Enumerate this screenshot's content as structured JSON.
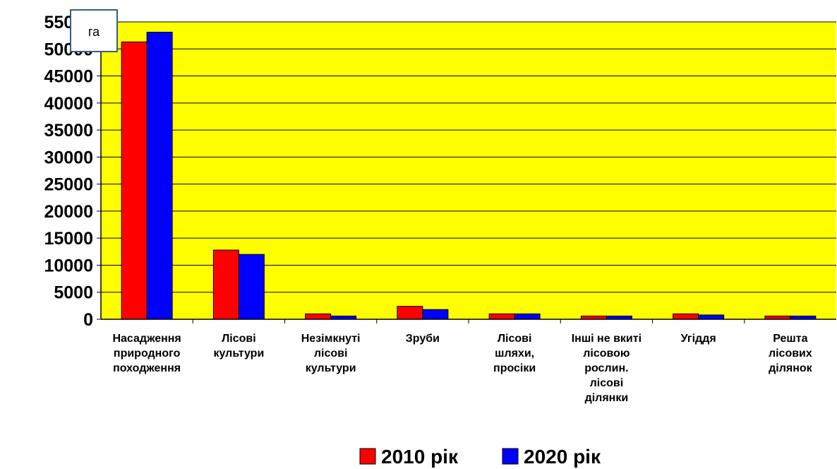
{
  "chart_data": {
    "type": "bar",
    "title": "",
    "xlabel": "",
    "ylabel": "",
    "unit_label": "га",
    "ylim": [
      0,
      55000
    ],
    "yticks": [
      0,
      5000,
      10000,
      15000,
      20000,
      25000,
      30000,
      35000,
      40000,
      45000,
      50000,
      55000
    ],
    "categories": [
      [
        "Насадження",
        "природного",
        "походження"
      ],
      [
        "Лісові",
        "культури"
      ],
      [
        "Незімкнуті",
        "лісові",
        "культури"
      ],
      [
        "Зруби"
      ],
      [
        "Лісові",
        "шляхи,",
        "просіки"
      ],
      [
        "Інші не вкиті",
        "лісовою",
        "рослин.",
        "лісові",
        "ділянки"
      ],
      [
        "Угіддя"
      ],
      [
        "Решта",
        "лісових",
        "ділянок"
      ]
    ],
    "series": [
      {
        "name": "2010 рік",
        "color": "#ff0000",
        "values": [
          51300,
          12800,
          1000,
          2400,
          1000,
          600,
          1000,
          600
        ]
      },
      {
        "name": "2020 рік",
        "color": "#0000ff",
        "values": [
          53100,
          12000,
          600,
          1800,
          1000,
          600,
          800,
          600
        ]
      }
    ],
    "grid": true,
    "plot_background": "#ffff00",
    "legend_position": "bottom"
  }
}
